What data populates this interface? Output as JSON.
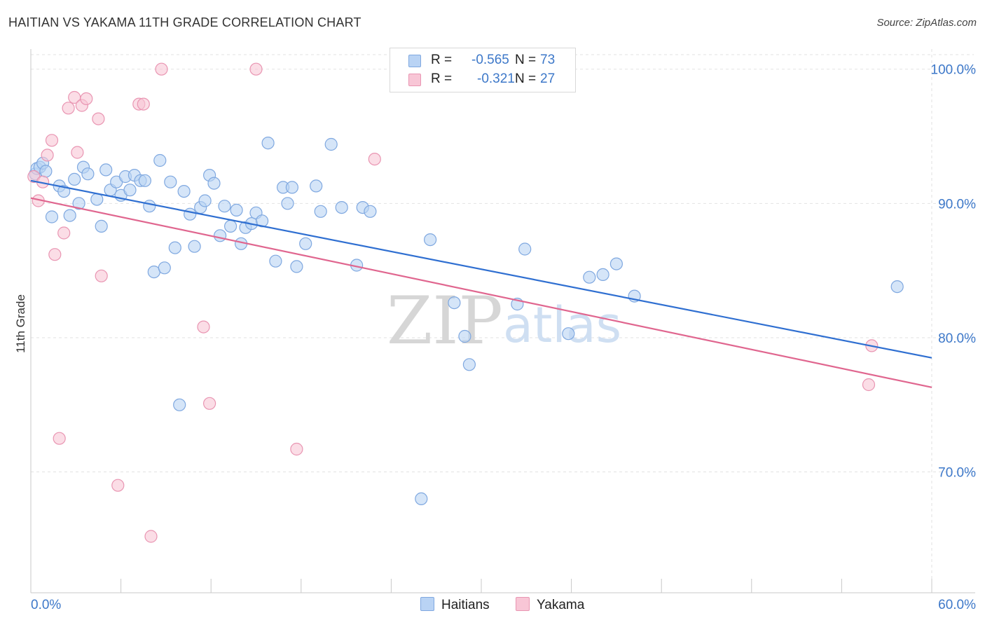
{
  "header": {
    "title": "HAITIAN VS YAKAMA 11TH GRADE CORRELATION CHART",
    "source": "Source: ZipAtlas.com"
  },
  "legend": {
    "r_label": "R =",
    "n_label": "N =",
    "haitians": {
      "r": "-0.565",
      "n": "73"
    },
    "yakama": {
      "r": "-0.321",
      "n": "27"
    }
  },
  "bottom_legend": {
    "haitians": "Haitians",
    "yakama": "Yakama"
  },
  "watermark": {
    "zip": "ZIP",
    "atlas": "atlas"
  },
  "colors": {
    "haitians_fill": "#b9d3f4",
    "haitians_stroke": "#7fa8e0",
    "haitians_line": "#2f6fd1",
    "yakama_fill": "#f8c6d6",
    "yakama_stroke": "#e995b2",
    "yakama_line": "#e0668f",
    "tick_label": "#3d78c9",
    "grid": "#e2e2e2"
  },
  "chart_data": {
    "type": "scatter",
    "title": "HAITIAN VS YAKAMA 11TH GRADE CORRELATION CHART",
    "xlabel": "",
    "ylabel": "11th Grade",
    "xlim": [
      0,
      60
    ],
    "ylim": [
      61,
      101.5
    ],
    "x_tick_labels": [
      "0.0%",
      "60.0%"
    ],
    "y_ticks": [
      70,
      80,
      90,
      100
    ],
    "y_tick_labels": [
      "70.0%",
      "80.0%",
      "90.0%",
      "100.0%"
    ],
    "grid": true,
    "series": [
      {
        "name": "Haitians",
        "R": -0.565,
        "N": 73,
        "trend": {
          "x": [
            0,
            60
          ],
          "y": [
            91.7,
            78.5
          ]
        },
        "points": [
          [
            0.3,
            92.2
          ],
          [
            0.4,
            92.6
          ],
          [
            0.6,
            92.7
          ],
          [
            0.8,
            93.0
          ],
          [
            1.0,
            92.4
          ],
          [
            1.4,
            89.0
          ],
          [
            1.9,
            91.3
          ],
          [
            2.2,
            90.9
          ],
          [
            2.6,
            89.1
          ],
          [
            2.9,
            91.8
          ],
          [
            3.2,
            90.0
          ],
          [
            3.5,
            92.7
          ],
          [
            3.8,
            92.2
          ],
          [
            4.4,
            90.3
          ],
          [
            4.7,
            88.3
          ],
          [
            5.0,
            92.5
          ],
          [
            5.3,
            91.0
          ],
          [
            5.7,
            91.6
          ],
          [
            6.0,
            90.6
          ],
          [
            6.3,
            92.0
          ],
          [
            6.6,
            91.0
          ],
          [
            6.9,
            92.1
          ],
          [
            7.3,
            91.7
          ],
          [
            7.6,
            91.7
          ],
          [
            7.9,
            89.8
          ],
          [
            8.2,
            84.9
          ],
          [
            8.6,
            93.2
          ],
          [
            8.9,
            85.2
          ],
          [
            9.3,
            91.6
          ],
          [
            9.6,
            86.7
          ],
          [
            9.9,
            75.0
          ],
          [
            10.2,
            90.9
          ],
          [
            10.6,
            89.2
          ],
          [
            10.9,
            86.8
          ],
          [
            11.3,
            89.7
          ],
          [
            11.6,
            90.2
          ],
          [
            11.9,
            92.1
          ],
          [
            12.2,
            91.5
          ],
          [
            12.6,
            87.6
          ],
          [
            12.9,
            89.8
          ],
          [
            13.3,
            88.3
          ],
          [
            13.7,
            89.5
          ],
          [
            14.0,
            87.0
          ],
          [
            14.3,
            88.2
          ],
          [
            14.7,
            88.5
          ],
          [
            15.0,
            89.3
          ],
          [
            15.4,
            88.7
          ],
          [
            15.8,
            94.5
          ],
          [
            16.3,
            85.7
          ],
          [
            16.8,
            91.2
          ],
          [
            17.1,
            90.0
          ],
          [
            17.4,
            91.2
          ],
          [
            17.7,
            85.3
          ],
          [
            18.3,
            87.0
          ],
          [
            19.0,
            91.3
          ],
          [
            19.3,
            89.4
          ],
          [
            20.0,
            94.4
          ],
          [
            20.7,
            89.7
          ],
          [
            21.7,
            85.4
          ],
          [
            22.1,
            89.7
          ],
          [
            22.6,
            89.4
          ],
          [
            26.0,
            68.0
          ],
          [
            26.6,
            87.3
          ],
          [
            28.2,
            82.6
          ],
          [
            28.9,
            80.1
          ],
          [
            29.2,
            78.0
          ],
          [
            32.4,
            82.5
          ],
          [
            32.9,
            86.6
          ],
          [
            35.8,
            80.3
          ],
          [
            37.2,
            84.5
          ],
          [
            38.1,
            84.7
          ],
          [
            39.0,
            85.5
          ],
          [
            40.2,
            83.1
          ],
          [
            57.7,
            83.8
          ]
        ]
      },
      {
        "name": "Yakama",
        "R": -0.321,
        "N": 27,
        "trend": {
          "x": [
            0,
            60
          ],
          "y": [
            90.4,
            76.3
          ]
        },
        "points": [
          [
            0.2,
            92.0
          ],
          [
            0.5,
            90.2
          ],
          [
            0.8,
            91.6
          ],
          [
            1.1,
            93.6
          ],
          [
            1.4,
            94.7
          ],
          [
            1.6,
            86.2
          ],
          [
            1.9,
            72.5
          ],
          [
            2.2,
            87.8
          ],
          [
            2.5,
            97.1
          ],
          [
            2.9,
            97.9
          ],
          [
            3.1,
            93.8
          ],
          [
            3.4,
            97.3
          ],
          [
            3.7,
            97.8
          ],
          [
            4.5,
            96.3
          ],
          [
            4.7,
            84.6
          ],
          [
            5.8,
            69.0
          ],
          [
            7.2,
            97.4
          ],
          [
            7.5,
            97.4
          ],
          [
            8.0,
            65.2
          ],
          [
            8.7,
            100.0
          ],
          [
            11.5,
            80.8
          ],
          [
            11.9,
            75.1
          ],
          [
            15.0,
            100.0
          ],
          [
            17.7,
            71.7
          ],
          [
            22.9,
            93.3
          ],
          [
            55.8,
            76.5
          ],
          [
            56.0,
            79.4
          ]
        ]
      }
    ]
  }
}
